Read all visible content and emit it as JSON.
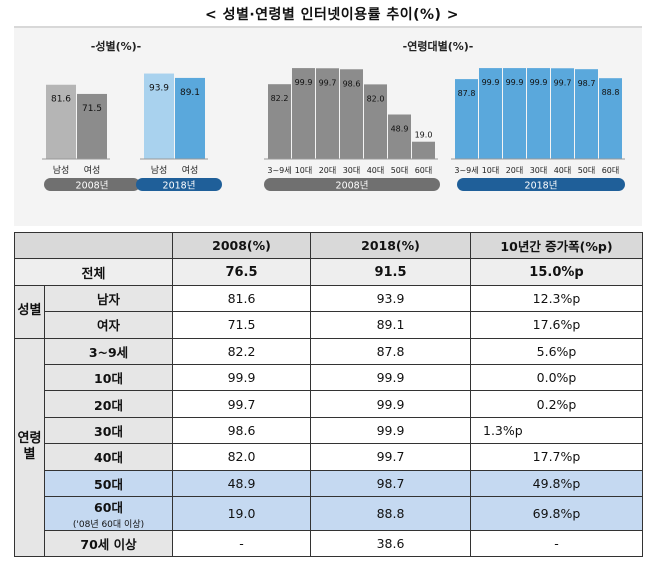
{
  "title": "< 성별·연령별 인터넷이용률 추이(%) >",
  "chart_data": [
    {
      "type": "bar",
      "title": "-성별(%)-",
      "categories": [
        "남성",
        "여성"
      ],
      "series": [
        {
          "name": "2008년",
          "values": [
            81.6,
            71.5
          ],
          "color": "#8c8c8c"
        },
        {
          "name": "2018년",
          "values": [
            93.9,
            89.1
          ],
          "color": "#5aa8dc"
        }
      ],
      "ylim": [
        0,
        100
      ]
    },
    {
      "type": "bar",
      "title": "-연령대별(%)-",
      "categories": [
        "3~9세",
        "10대",
        "20대",
        "30대",
        "40대",
        "50대",
        "60대"
      ],
      "series": [
        {
          "name": "2008년",
          "values": [
            82.2,
            99.9,
            99.7,
            98.6,
            82.0,
            48.9,
            19.0
          ],
          "color": "#8c8c8c"
        },
        {
          "name": "2018년",
          "values": [
            87.8,
            99.9,
            99.9,
            99.9,
            99.7,
            98.7,
            88.8
          ],
          "color": "#5aa8dc"
        }
      ],
      "ylim": [
        0,
        100
      ]
    }
  ],
  "colors": {
    "gray_bar": "#8c8c8c",
    "gray_bar_light": "#b5b5b5",
    "blue_bar": "#5aa8dc",
    "blue_bar_light": "#a9d2ee",
    "label_2008": "#707070",
    "label_2018": "#1f5f99",
    "highlight_row": "#c5d9f1"
  },
  "table": {
    "headers": [
      "2008(%)",
      "2018(%)",
      "10년간 증가폭(%p)"
    ],
    "total": {
      "label": "전체",
      "v2008": "76.5",
      "v2018": "91.5",
      "inc": "15.0%p"
    },
    "gender_label": "성별",
    "gender_rows": [
      {
        "label": "남자",
        "v2008": "81.6",
        "v2018": "93.9",
        "inc": "12.3%p"
      },
      {
        "label": "여자",
        "v2008": "71.5",
        "v2018": "89.1",
        "inc": "17.6%p"
      }
    ],
    "age_label_1": "연령",
    "age_label_2": "별",
    "age_rows": [
      {
        "label": "3~9세",
        "v2008": "82.2",
        "v2018": "87.8",
        "inc": "5.6%p"
      },
      {
        "label": "10대",
        "v2008": "99.9",
        "v2018": "99.9",
        "inc": "0.0%p"
      },
      {
        "label": "20대",
        "v2008": "99.7",
        "v2018": "99.9",
        "inc": "0.2%p"
      },
      {
        "label": "30대",
        "v2008": "98.6",
        "v2018": "99.9",
        "inc": "1.3%p"
      },
      {
        "label": "40대",
        "v2008": "82.0",
        "v2018": "99.7",
        "inc": "17.7%p"
      },
      {
        "label": "50대",
        "v2008": "48.9",
        "v2018": "98.7",
        "inc": "49.8%p"
      },
      {
        "label": "60대",
        "sub": "('08년 60대 이상)",
        "v2008": "19.0",
        "v2018": "88.8",
        "inc": "69.8%p"
      },
      {
        "label": "70세 이상",
        "v2008": "-",
        "v2018": "38.6",
        "inc": "-"
      }
    ]
  }
}
